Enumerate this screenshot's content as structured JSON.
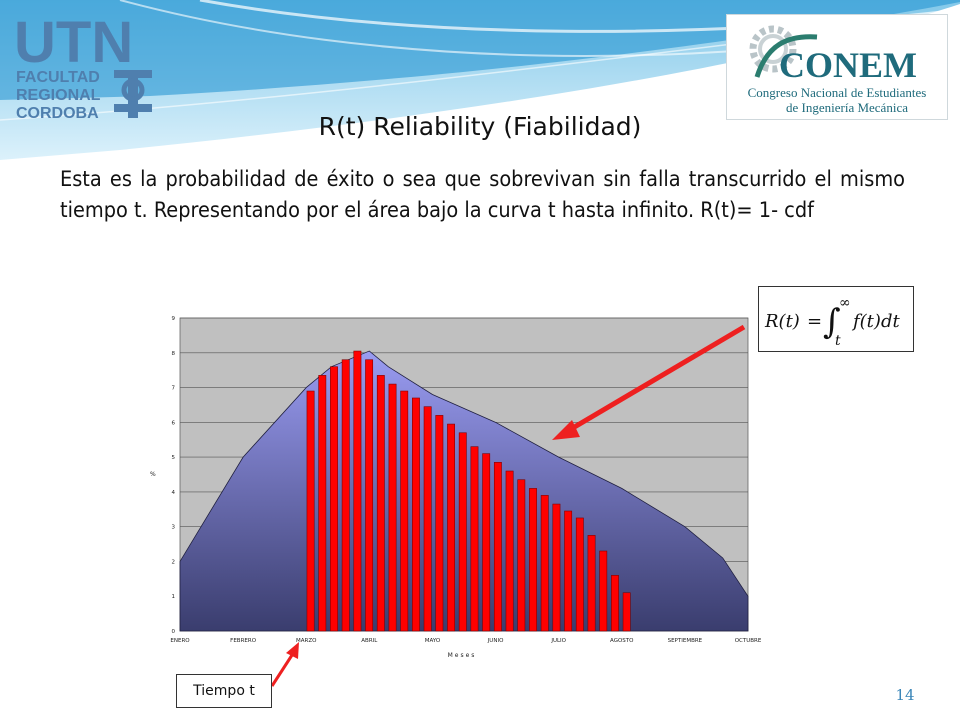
{
  "slide": {
    "title": "R(t) Reliability (Fiabilidad)",
    "body": "Esta es la probabilidad de éxito o  sea que sobrevivan sin falla transcurrido el mismo  tiempo t. Representando por el área bajo la curva t hasta infinito.  R(t)= 1- cdf",
    "page_number": "14"
  },
  "logos": {
    "utn_name": "UTN",
    "utn_line1": "FACULTAD",
    "utn_line2": "REGIONAL",
    "utn_line3": "CORDOBA",
    "conem_name": "CONEM",
    "conem_line1": "Congreso Nacional de Estudiantes",
    "conem_line2": "de Ingeniería Mecánica"
  },
  "formula": {
    "lhs": "R(t)",
    "upper_limit": "∞",
    "lower_limit": "t",
    "integrand": "f(t)dt"
  },
  "callout": {
    "label": "Tiempo t"
  },
  "colors": {
    "plot_bg": "#c0c0c0",
    "bar_fill": "#ff0000",
    "bar_stroke": "#800000",
    "area_top": "#9a9cf2",
    "area_bottom": "#3a3d6e",
    "arrow": "#ee2020",
    "utn_blue": "#3a6ea5",
    "conem_teal": "#1f6b7c"
  },
  "chart_data": {
    "type": "area",
    "xlabel": "Meses",
    "ylabel": "%",
    "ylim": [
      0,
      9
    ],
    "yticks": [
      "0",
      "1",
      "2",
      "3",
      "4",
      "5",
      "6",
      "7",
      "8",
      "9"
    ],
    "grid": true,
    "categories": [
      "ENERO",
      "FEBRERO",
      "MARZO",
      "ABRIL",
      "MAYO",
      "JUNIO",
      "JULIO",
      "AGOSTO",
      "SEPTIEMBRE",
      "OCTUBRE"
    ],
    "area_points": [
      {
        "x": 0,
        "y": 2.0
      },
      {
        "x": 1,
        "y": 5.0
      },
      {
        "x": 2,
        "y": 7.0
      },
      {
        "x": 2.4,
        "y": 7.6
      },
      {
        "x": 3.0,
        "y": 8.05
      },
      {
        "x": 3.3,
        "y": 7.6
      },
      {
        "x": 4,
        "y": 6.8
      },
      {
        "x": 5,
        "y": 6.0
      },
      {
        "x": 6,
        "y": 5.0
      },
      {
        "x": 7,
        "y": 4.1
      },
      {
        "x": 8,
        "y": 3.0
      },
      {
        "x": 8.6,
        "y": 2.1
      },
      {
        "x": 9,
        "y": 1.0
      }
    ],
    "bars": {
      "x_start": 2.0,
      "x_step": 0.1855,
      "values": [
        6.9,
        7.35,
        7.6,
        7.8,
        8.05,
        7.8,
        7.35,
        7.1,
        6.9,
        6.7,
        6.45,
        6.2,
        5.95,
        5.7,
        5.3,
        5.1,
        4.85,
        4.6,
        4.35,
        4.1,
        3.9,
        3.65,
        3.45,
        3.25,
        2.75,
        2.3,
        1.6,
        1.1
      ]
    }
  }
}
